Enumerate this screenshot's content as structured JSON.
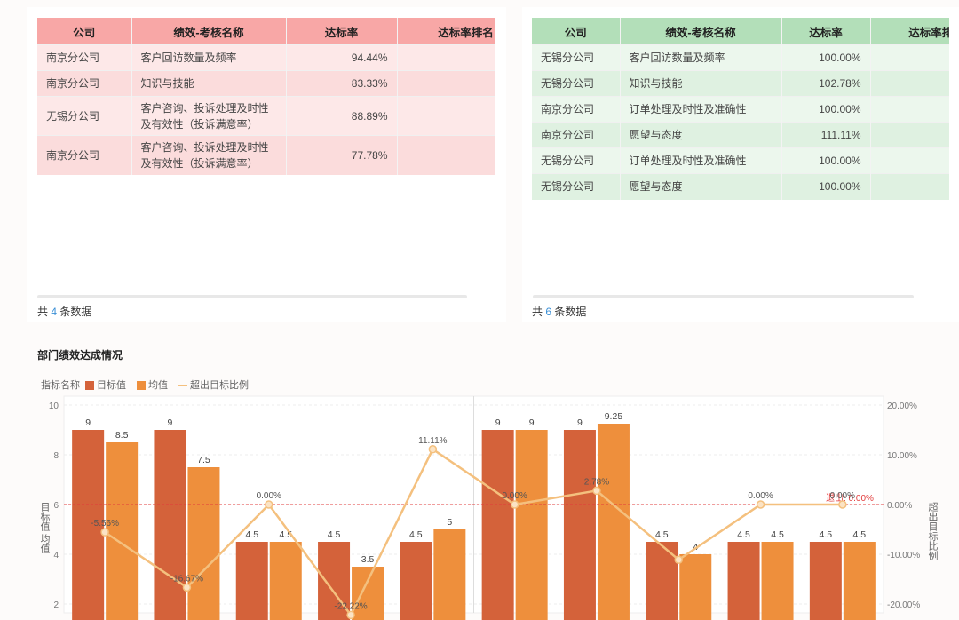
{
  "left_table": {
    "columns": [
      "公司",
      "绩效-考核名称",
      "达标率",
      "达标率排名"
    ],
    "rows": [
      {
        "company": "南京分公司",
        "name": "客户回访数量及频率",
        "rate": "94.44%"
      },
      {
        "company": "南京分公司",
        "name": "知识与技能",
        "rate": "83.33%"
      },
      {
        "company": "无锡分公司",
        "name": "客户咨询、投诉处理及时性及有效性（投诉满意率）",
        "rate": "88.89%"
      },
      {
        "company": "南京分公司",
        "name": "客户咨询、投诉处理及时性及有效性（投诉满意率）",
        "rate": "77.78%"
      }
    ],
    "count_prefix": "共",
    "count": "4",
    "count_suffix": "条数据"
  },
  "right_table": {
    "columns": [
      "公司",
      "绩效-考核名称",
      "达标率",
      "达标率排名"
    ],
    "rows": [
      {
        "company": "无锡分公司",
        "name": "客户回访数量及频率",
        "rate": "100.00%"
      },
      {
        "company": "无锡分公司",
        "name": "知识与技能",
        "rate": "102.78%"
      },
      {
        "company": "南京分公司",
        "name": "订单处理及时性及准确性",
        "rate": "100.00%"
      },
      {
        "company": "南京分公司",
        "name": "愿望与态度",
        "rate": "111.11%"
      },
      {
        "company": "无锡分公司",
        "name": "订单处理及时性及准确性",
        "rate": "100.00%"
      },
      {
        "company": "无锡分公司",
        "name": "愿望与态度",
        "rate": "100.00%"
      }
    ],
    "count_prefix": "共",
    "count": "6",
    "count_suffix": "条数据"
  },
  "chart_section": {
    "title": "部门绩效达成情况",
    "legend_label": "指标名称"
  },
  "chart_data": {
    "type": "bar",
    "title": "部门绩效达成情况",
    "ylabel": "目标值 均值",
    "y2label": "超出目标比例",
    "ylim": [
      2,
      10
    ],
    "yticks": [
      2,
      4,
      6,
      8,
      10
    ],
    "y2lim": [
      -20,
      20
    ],
    "y2ticks": [
      "-20.00%",
      "-10.00%",
      "0.00%",
      "10.00%",
      "20.00%"
    ],
    "series": [
      {
        "name": "目标值",
        "type": "bar",
        "color": "#d4623a",
        "values": [
          9,
          9,
          4.5,
          4.5,
          4.5,
          9,
          9,
          4.5,
          4.5,
          4.5
        ],
        "labels": [
          "9",
          "9",
          "4.5",
          "4.5",
          "4.5",
          "9",
          "9",
          "4.5",
          "4.5",
          "4.5"
        ]
      },
      {
        "name": "均值",
        "type": "bar",
        "color": "#ee8f3c",
        "values": [
          8.5,
          7.5,
          4.5,
          3.5,
          5,
          9,
          9.25,
          4,
          4.5,
          4.5
        ],
        "labels": [
          "8.5",
          "7.5",
          "4.5",
          "3.5",
          "5",
          "9",
          "9.25",
          "4",
          "4.5",
          "4.5"
        ]
      },
      {
        "name": "超出目标比例",
        "type": "line",
        "color": "#f4c07e",
        "values": [
          -5.56,
          -16.67,
          0,
          -22.22,
          11.11,
          0,
          2.78,
          -11.11,
          0,
          0
        ],
        "labels": [
          "-5.56%",
          "-16.67%",
          "0.00%",
          "-22.22%",
          "11.11%",
          "0.00%",
          "2.78%",
          "",
          "0.00%",
          "0.00%"
        ]
      }
    ],
    "reference_line": {
      "value": 0,
      "color": "#e23b3b",
      "label": "退出: 0.00%"
    },
    "grid": true,
    "legend": "top-left"
  }
}
